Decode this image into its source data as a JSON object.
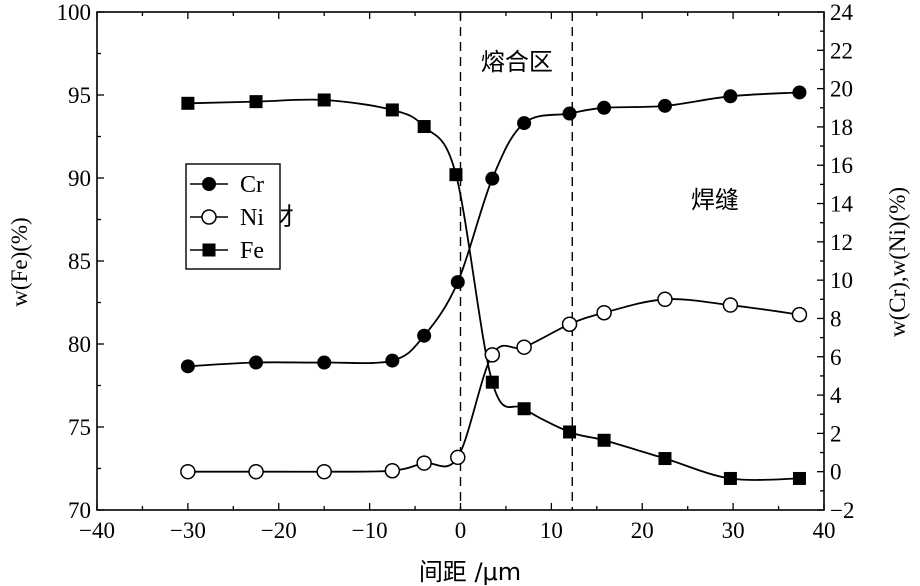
{
  "chart_data": {
    "type": "line",
    "xlabel": "间距 /μm",
    "ylabel_left": "w(Fe)(%)",
    "ylabel_right": "w(Cr),w(Ni)(%)",
    "xlim": [
      -40,
      40
    ],
    "x_ticks": [
      -40,
      -30,
      -20,
      -10,
      0,
      10,
      20,
      30,
      40
    ],
    "x_tick_labels": [
      "−40",
      "−30",
      "−20",
      "−10",
      "0",
      "10",
      "20",
      "30",
      "40"
    ],
    "ylim_left": [
      70,
      100
    ],
    "y_left_ticks": [
      70,
      75,
      80,
      85,
      90,
      95,
      100
    ],
    "y_left_tick_labels": [
      "70",
      "75",
      "80",
      "85",
      "90",
      "95",
      "100"
    ],
    "ylim_right": [
      -2,
      24
    ],
    "y_right_ticks": [
      -2,
      0,
      2,
      4,
      6,
      8,
      10,
      12,
      14,
      16,
      18,
      20,
      22,
      24
    ],
    "y_right_tick_labels": [
      "−2",
      "0",
      "2",
      "4",
      "6",
      "8",
      "10",
      "12",
      "14",
      "16",
      "18",
      "20",
      "22",
      "24"
    ],
    "legend_position": "left",
    "zone_boundaries_x": [
      0,
      12.3
    ],
    "annotations": [
      {
        "text": "熔合区",
        "x": 6.2,
        "y_left": 96.5
      },
      {
        "text": "母材",
        "x": -21,
        "y_left": 87.2
      },
      {
        "text": "焊缝",
        "x": 28,
        "y_left": 88.2
      }
    ],
    "series": [
      {
        "name": "Cr",
        "axis": "right",
        "marker": "filled-circle",
        "points": [
          [
            -30,
            5.5
          ],
          [
            -22.5,
            5.7
          ],
          [
            -15,
            5.7
          ],
          [
            -7.5,
            5.8
          ],
          [
            -4,
            7.1
          ],
          [
            -0.3,
            9.9
          ],
          [
            3.5,
            15.3
          ],
          [
            7,
            18.2
          ],
          [
            12,
            18.7
          ],
          [
            15.8,
            19.0
          ],
          [
            22.5,
            19.1
          ],
          [
            29.7,
            19.6
          ],
          [
            37.3,
            19.8
          ]
        ]
      },
      {
        "name": "Ni",
        "axis": "right",
        "marker": "open-circle",
        "points": [
          [
            -30,
            0.0
          ],
          [
            -22.5,
            0.0
          ],
          [
            -15,
            0.0
          ],
          [
            -7.5,
            0.05
          ],
          [
            -4,
            0.45
          ],
          [
            -0.3,
            0.75
          ],
          [
            3.5,
            6.1
          ],
          [
            7,
            6.5
          ],
          [
            12,
            7.7
          ],
          [
            15.8,
            8.3
          ],
          [
            22.5,
            9.0
          ],
          [
            29.7,
            8.7
          ],
          [
            37.3,
            8.2
          ]
        ]
      },
      {
        "name": "Fe",
        "axis": "left",
        "marker": "filled-square",
        "points": [
          [
            -30,
            94.5
          ],
          [
            -22.5,
            94.6
          ],
          [
            -15,
            94.7
          ],
          [
            -7.5,
            94.1
          ],
          [
            -4,
            93.1
          ],
          [
            -0.5,
            90.2
          ],
          [
            3.5,
            77.7
          ],
          [
            7,
            76.1
          ],
          [
            12,
            74.7
          ],
          [
            15.8,
            74.2
          ],
          [
            22.5,
            73.1
          ],
          [
            29.7,
            71.9
          ],
          [
            37.3,
            71.9
          ]
        ]
      }
    ]
  }
}
